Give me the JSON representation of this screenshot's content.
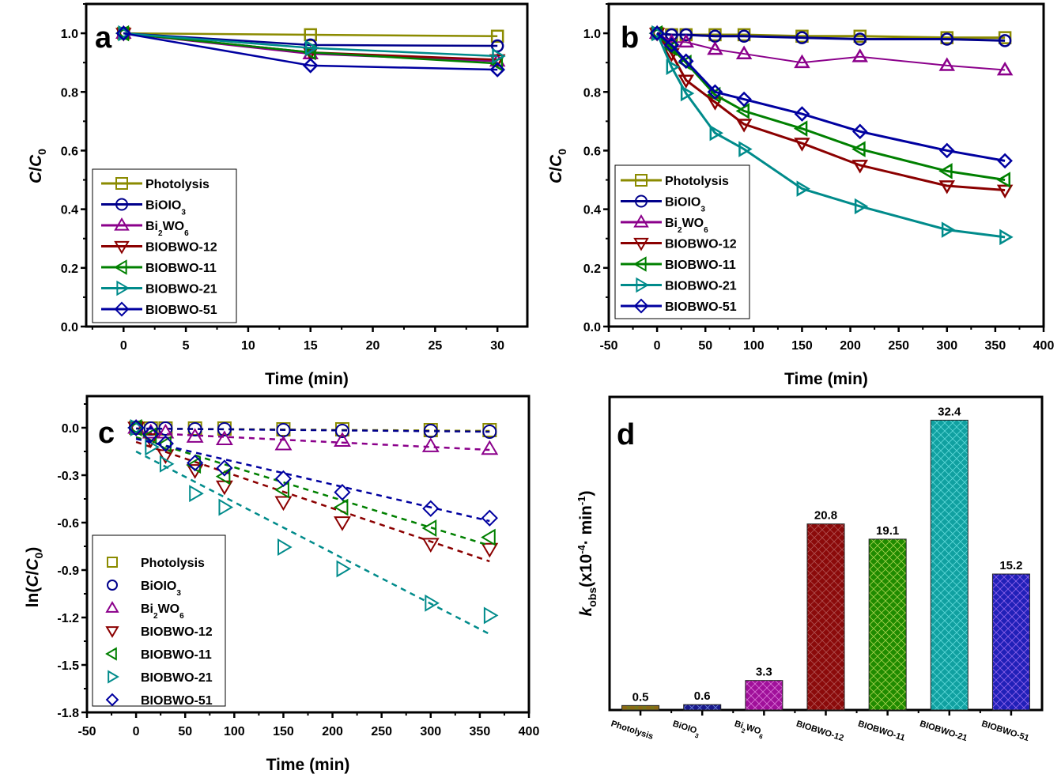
{
  "figure": {
    "series_styles": [
      {
        "name": "Photolysis",
        "color": "#8b8b00",
        "marker": "square"
      },
      {
        "name": "BiOIO3",
        "color": "#00008b",
        "marker": "circle"
      },
      {
        "name": "Bi2WO6",
        "color": "#8b008b",
        "marker": "triangle-up"
      },
      {
        "name": "BIOBWO-12",
        "color": "#8b0000",
        "marker": "triangle-down"
      },
      {
        "name": "BIOBWO-11",
        "color": "#008000",
        "marker": "triangle-left"
      },
      {
        "name": "BIOBWO-21",
        "color": "#008b8b",
        "marker": "triangle-right"
      },
      {
        "name": "BIOBWO-51",
        "color": "#0000a0",
        "marker": "diamond"
      }
    ],
    "legend_labels": [
      {
        "main": "Photolysis",
        "sub1": "",
        "mid": "",
        "sub2": ""
      },
      {
        "main": "BiOIO",
        "sub1": "3",
        "mid": "",
        "sub2": ""
      },
      {
        "main": "Bi",
        "sub1": "2",
        "mid": "WO",
        "sub2": "6"
      },
      {
        "main": "BIOBWO-12",
        "sub1": "",
        "mid": "",
        "sub2": ""
      },
      {
        "main": "BIOBWO-11",
        "sub1": "",
        "mid": "",
        "sub2": ""
      },
      {
        "main": "BIOBWO-21",
        "sub1": "",
        "mid": "",
        "sub2": ""
      },
      {
        "main": "BIOBWO-51",
        "sub1": "",
        "mid": "",
        "sub2": ""
      }
    ]
  },
  "chart_data": [
    {
      "panel": "a",
      "type": "line",
      "title": "",
      "xlabel": "Time (min)",
      "ylabel": "C/C0",
      "ylabel_parts": {
        "c": "C",
        "slash": "/",
        "c0": "C",
        "sub": "0"
      },
      "xlim": [
        -3,
        32.4
      ],
      "ylim": [
        0,
        1.1
      ],
      "xticks": [
        0,
        5,
        10,
        15,
        20,
        25,
        30
      ],
      "yticks": [
        0.0,
        0.2,
        0.4,
        0.6,
        0.8,
        1.0
      ],
      "ytick_labels": [
        "0.0",
        "0.2",
        "0.4",
        "0.6",
        "0.8",
        "1.0"
      ],
      "legend": "bottom-left",
      "x": [
        0,
        15,
        30
      ],
      "series": [
        {
          "name": "Photolysis",
          "values": [
            1.0,
            0.995,
            0.99
          ]
        },
        {
          "name": "BiOIO3",
          "values": [
            1.0,
            0.96,
            0.957
          ]
        },
        {
          "name": "Bi2WO6",
          "values": [
            1.0,
            0.93,
            0.905
          ]
        },
        {
          "name": "BIOBWO-12",
          "values": [
            1.0,
            0.935,
            0.91
          ]
        },
        {
          "name": "BIOBWO-11",
          "values": [
            1.0,
            0.935,
            0.897
          ]
        },
        {
          "name": "BIOBWO-21",
          "values": [
            1.0,
            0.95,
            0.922
          ]
        },
        {
          "name": "BIOBWO-51",
          "values": [
            1.0,
            0.89,
            0.876
          ]
        }
      ]
    },
    {
      "panel": "b",
      "type": "line",
      "title": "",
      "xlabel": "Time (min)",
      "ylabel": "C/C0",
      "ylabel_parts": {
        "c": "C",
        "slash": "/",
        "c0": "C",
        "sub": "0"
      },
      "xlim": [
        -50,
        400
      ],
      "ylim": [
        0,
        1.1
      ],
      "xticks": [
        -50,
        0,
        50,
        100,
        150,
        200,
        250,
        300,
        350,
        400
      ],
      "yticks": [
        0.0,
        0.2,
        0.4,
        0.6,
        0.8,
        1.0
      ],
      "ytick_labels": [
        "0.0",
        "0.2",
        "0.4",
        "0.6",
        "0.8",
        "1.0"
      ],
      "legend": "bottom-left",
      "x": [
        0,
        15,
        30,
        60,
        90,
        150,
        210,
        300,
        360
      ],
      "series": [
        {
          "name": "Photolysis",
          "values": [
            1.0,
            0.995,
            0.995,
            0.995,
            0.995,
            0.99,
            0.99,
            0.985,
            0.985
          ]
        },
        {
          "name": "BiOIO3",
          "values": [
            1.0,
            0.995,
            0.995,
            0.99,
            0.99,
            0.985,
            0.98,
            0.98,
            0.975
          ]
        },
        {
          "name": "Bi2WO6",
          "values": [
            1.0,
            0.97,
            0.97,
            0.945,
            0.93,
            0.9,
            0.92,
            0.89,
            0.875
          ]
        },
        {
          "name": "BIOBWO-12",
          "values": [
            1.0,
            0.93,
            0.84,
            0.765,
            0.69,
            0.625,
            0.55,
            0.48,
            0.465
          ]
        },
        {
          "name": "BIOBWO-11",
          "values": [
            1.0,
            0.95,
            0.9,
            0.79,
            0.735,
            0.675,
            0.605,
            0.53,
            0.5
          ]
        },
        {
          "name": "BIOBWO-21",
          "values": [
            1.0,
            0.885,
            0.795,
            0.66,
            0.605,
            0.47,
            0.41,
            0.33,
            0.305
          ]
        },
        {
          "name": "BIOBWO-51",
          "values": [
            1.0,
            0.96,
            0.905,
            0.8,
            0.775,
            0.725,
            0.665,
            0.6,
            0.565
          ]
        }
      ]
    },
    {
      "panel": "c",
      "type": "scatter",
      "title": "",
      "xlabel": "Time (min)",
      "ylabel": "ln(C/C0)",
      "ylabel_parts": {
        "pre": "ln(",
        "c": "C",
        "slash": "/",
        "c0": "C",
        "sub": "0",
        "post": ")"
      },
      "xlim": [
        -50,
        400
      ],
      "ylim": [
        -1.8,
        0.2
      ],
      "xticks": [
        -50,
        0,
        50,
        100,
        150,
        200,
        250,
        300,
        350,
        400
      ],
      "yticks": [
        0.0,
        -0.3,
        -0.6,
        -0.9,
        -1.2,
        -1.5,
        -1.8
      ],
      "ytick_labels": [
        "0.0",
        "-0.3",
        "-0.6",
        "-0.9",
        "-1.2",
        "-1.5",
        "-1.8"
      ],
      "legend": "bottom-left",
      "x": [
        0,
        15,
        30,
        60,
        90,
        150,
        210,
        300,
        360
      ],
      "series": [
        {
          "name": "Photolysis",
          "values": [
            0.0,
            -0.005,
            -0.005,
            -0.005,
            -0.005,
            -0.01,
            -0.01,
            -0.015,
            -0.015
          ],
          "fit": [
            -0.005,
            -0.02
          ]
        },
        {
          "name": "BiOIO3",
          "values": [
            0.0,
            -0.005,
            -0.005,
            -0.01,
            -0.01,
            -0.015,
            -0.02,
            -0.02,
            -0.025
          ],
          "fit": [
            -0.005,
            -0.025
          ]
        },
        {
          "name": "Bi2WO6",
          "values": [
            0.0,
            -0.03,
            -0.03,
            -0.057,
            -0.073,
            -0.105,
            -0.083,
            -0.117,
            -0.134
          ],
          "fit": [
            -0.03,
            -0.14
          ]
        },
        {
          "name": "BIOBWO-12",
          "values": [
            0.0,
            -0.073,
            -0.174,
            -0.268,
            -0.371,
            -0.47,
            -0.598,
            -0.734,
            -0.766
          ],
          "fit": [
            -0.09,
            -0.845
          ]
        },
        {
          "name": "BIOBWO-11",
          "values": [
            0.0,
            -0.051,
            -0.105,
            -0.236,
            -0.308,
            -0.393,
            -0.503,
            -0.635,
            -0.693
          ],
          "fit": [
            -0.06,
            -0.745
          ]
        },
        {
          "name": "BIOBWO-21",
          "values": [
            0.0,
            -0.122,
            -0.229,
            -0.416,
            -0.503,
            -0.755,
            -0.892,
            -1.109,
            -1.187
          ],
          "fit": [
            -0.15,
            -1.305
          ]
        },
        {
          "name": "BIOBWO-51",
          "values": [
            0.0,
            -0.041,
            -0.1,
            -0.223,
            -0.255,
            -0.322,
            -0.408,
            -0.511,
            -0.571
          ],
          "fit": [
            -0.07,
            -0.59
          ]
        }
      ],
      "fit_x": [
        0,
        360
      ]
    },
    {
      "panel": "d",
      "type": "bar",
      "title": "",
      "xlabel": "",
      "ylabel": "k_obs (x10^-4 · min^-1)",
      "ylabel_parts": {
        "k": "k",
        "sub": "obs",
        "pre": "(x10",
        "sup1": "-4",
        "mid": "· min",
        "sup2": "-1",
        "post": ")"
      },
      "ylim": [
        0,
        35
      ],
      "categories": [
        "Photolysis",
        "BiOIO3",
        "Bi2WO6",
        "BIOBWO-12",
        "BIOBWO-11",
        "BIOBWO-21",
        "BIOBWO-51"
      ],
      "values": [
        0.5,
        0.6,
        3.3,
        20.8,
        19.1,
        32.4,
        15.2
      ],
      "value_labels": [
        "0.5",
        "0.6",
        "3.3",
        "20.8",
        "19.1",
        "32.4",
        "15.2"
      ],
      "bar_colors": [
        "#8b6914",
        "#1a1a8b",
        "#a0109a",
        "#8b0a0a",
        "#1f8b00",
        "#10a0a0",
        "#2020b8"
      ],
      "hatch_colors": [
        "#5a8b20",
        "#8fb0ff",
        "#f0a0f0",
        "#c07070",
        "#e0f070",
        "#80f0f0",
        "#c080ff"
      ]
    }
  ],
  "panel_letters": [
    "a",
    "b",
    "c",
    "d"
  ]
}
